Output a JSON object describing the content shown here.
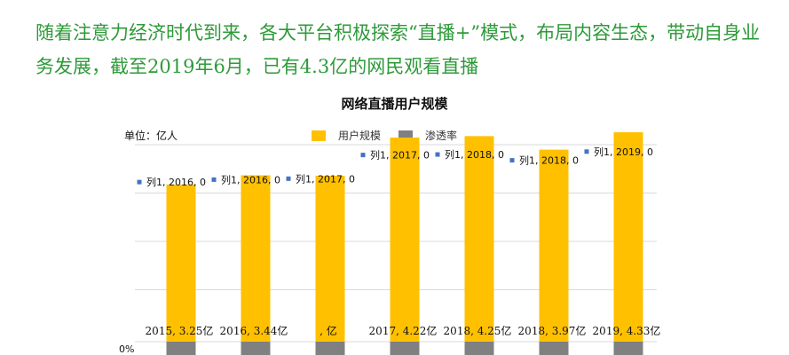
{
  "headline": "随着注意力经济时代到来，各大平台积极探索“直播+”模式，布局内容生态，带动自身业务发展，截至2019年6月，已有4.3亿的网民观看直播",
  "colors": {
    "headline": "#2e9a3a",
    "bar_users": "#ffc000",
    "bar_penetration": "#808080",
    "marker": "#4472c4",
    "grid": "#d9d9d9"
  },
  "chart_data": {
    "type": "bar",
    "title": "网络直播用户规模",
    "unit_label": "单位：亿人",
    "legend": [
      {
        "name": "用户规模",
        "color": "#ffc000"
      },
      {
        "name": "渗透率",
        "color": "#808080"
      }
    ],
    "legend_placement": "top",
    "grid": true,
    "categories": [
      "2015",
      "2016",
      "",
      "2017",
      "2018",
      "2018",
      "2019"
    ],
    "series": [
      {
        "name": "用户规模",
        "values": [
          3.25,
          3.44,
          3.43,
          4.22,
          4.25,
          3.97,
          4.33
        ]
      },
      {
        "name": "渗透率",
        "values": [
          0,
          0,
          0,
          0,
          0,
          0,
          0
        ]
      }
    ],
    "data_labels": [
      "2015, 3.25亿",
      "2016, 3.44亿",
      ", 亿",
      "2017, 4.22亿",
      "2018, 4.25亿",
      "2018, 3.97亿",
      "2019, 4.33亿"
    ],
    "marker_labels": [
      "列1, 2016, 0",
      "列1, 2016, 0",
      "列1, 2017, 0",
      "列1, 2017, 0",
      "列1, 2018, 0",
      "列1, 2018, 0",
      "列1, 2019, 0"
    ],
    "marker_values": [
      3.3,
      3.35,
      3.37,
      3.86,
      3.87,
      3.75,
      3.93
    ],
    "y_tick_label": "0%",
    "ylim": [
      0,
      5
    ]
  }
}
